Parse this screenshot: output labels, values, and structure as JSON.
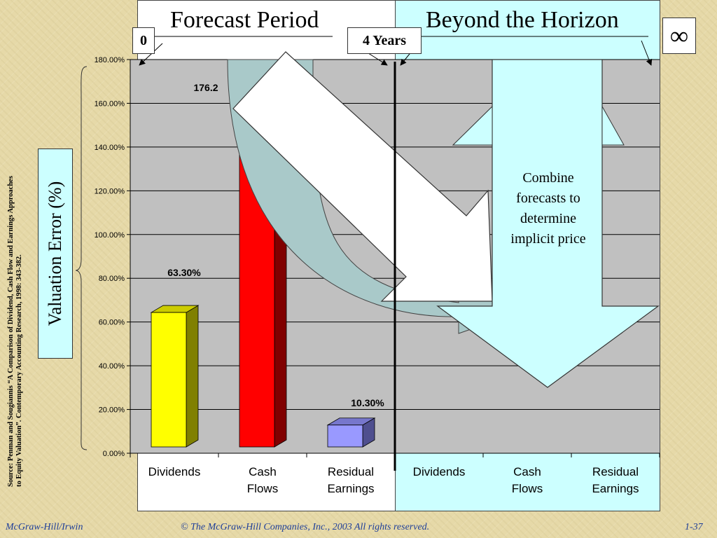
{
  "slide": {
    "header_left": "Forecast Period",
    "header_right": "Beyond the Horizon",
    "marker_zero": "0",
    "marker_four": "4 Years",
    "marker_infinity": "∞",
    "callout": "Combine forecasts to determine implicit price",
    "ylabel": "Valuation Error (%)",
    "source_line1": "Source:  Penman and Sougiannis “A Comparison of Dividend, Cash Flow and Earnings Approaches",
    "source_line2": "to Equity Valuation”. Contemporary Accounting Research, 1998: 343-382.",
    "footer_left": "McGraw-Hill/Irwin",
    "footer_center": "© The McGraw-Hill Companies, Inc., 2003  All rights reserved.",
    "footer_right": "1-37"
  },
  "colors": {
    "dividends": "#ffff00",
    "cash_flows": "#ff0000",
    "residual_earnings": "#9999ff",
    "plot_bg": "#c0c0c0",
    "arrow_teal": "#a9c9c9",
    "footer_text": "#1f3f99"
  },
  "chart_data": {
    "type": "bar",
    "categories": [
      "Dividends",
      "Cash Flows",
      "Residual Earnings",
      "Dividends",
      "Cash Flows",
      "Residual Earnings"
    ],
    "category_lines": [
      [
        "Dividends"
      ],
      [
        "Cash",
        "Flows"
      ],
      [
        "Residual",
        "Earnings"
      ],
      [
        "Dividends"
      ],
      [
        "Cash",
        "Flows"
      ],
      [
        "Residual",
        "Earnings"
      ]
    ],
    "values": [
      63.3,
      176.2,
      10.3,
      null,
      null,
      null
    ],
    "data_labels": [
      "63.30%",
      "176.2",
      "10.30%",
      "",
      "",
      ""
    ],
    "ylim": [
      0,
      180
    ],
    "yticks": [
      "0.00%",
      "20.00%",
      "40.00%",
      "60.00%",
      "80.00%",
      "100.00%",
      "120.00%",
      "140.00%",
      "160.00%",
      "180.00%"
    ],
    "grid": true,
    "title": "",
    "xlabel": "",
    "ylabel": "Valuation Error (%)"
  }
}
